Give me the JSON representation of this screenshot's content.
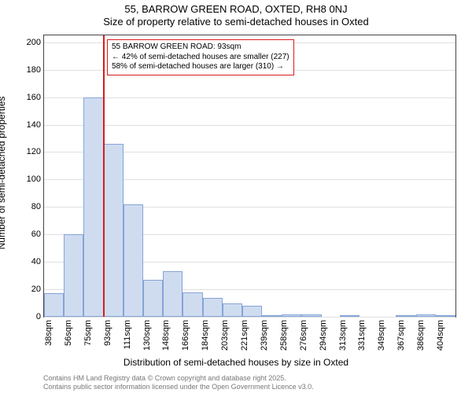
{
  "title_line1": "55, BARROW GREEN ROAD, OXTED, RH8 0NJ",
  "title_line2": "Size of property relative to semi-detached houses in Oxted",
  "y_label": "Number of semi-detached properties",
  "x_label": "Distribution of semi-detached houses by size in Oxted",
  "chart": {
    "type": "histogram",
    "background_color": "#ffffff",
    "grid_color": "#e0e0e0",
    "plot_border_color": "#444444",
    "bar_fill": "#cfdcf0",
    "bar_border": "#86a4d6",
    "marker_color": "#d91c1c",
    "ylim": [
      0,
      205
    ],
    "yticks": [
      0,
      20,
      40,
      60,
      80,
      100,
      120,
      140,
      160,
      180,
      200
    ],
    "xticks": [
      "38sqm",
      "56sqm",
      "75sqm",
      "93sqm",
      "111sqm",
      "130sqm",
      "148sqm",
      "166sqm",
      "184sqm",
      "203sqm",
      "221sqm",
      "239sqm",
      "258sqm",
      "276sqm",
      "294sqm",
      "313sqm",
      "331sqm",
      "349sqm",
      "367sqm",
      "386sqm",
      "404sqm"
    ],
    "values": [
      17,
      60,
      160,
      126,
      82,
      27,
      33,
      18,
      14,
      10,
      8,
      1,
      2,
      2,
      0,
      1,
      0,
      0,
      1,
      2,
      1
    ],
    "marker_x_index": 3,
    "callout": {
      "line1": "55 BARROW GREEN ROAD: 93sqm",
      "line2": "← 42% of semi-detached houses are smaller (227)",
      "line3": "58% of semi-detached houses are larger (310) →"
    }
  },
  "footer_line1": "Contains HM Land Registry data © Crown copyright and database right 2025.",
  "footer_line2": "Contains public sector information licensed under the Open Government Licence v3.0."
}
